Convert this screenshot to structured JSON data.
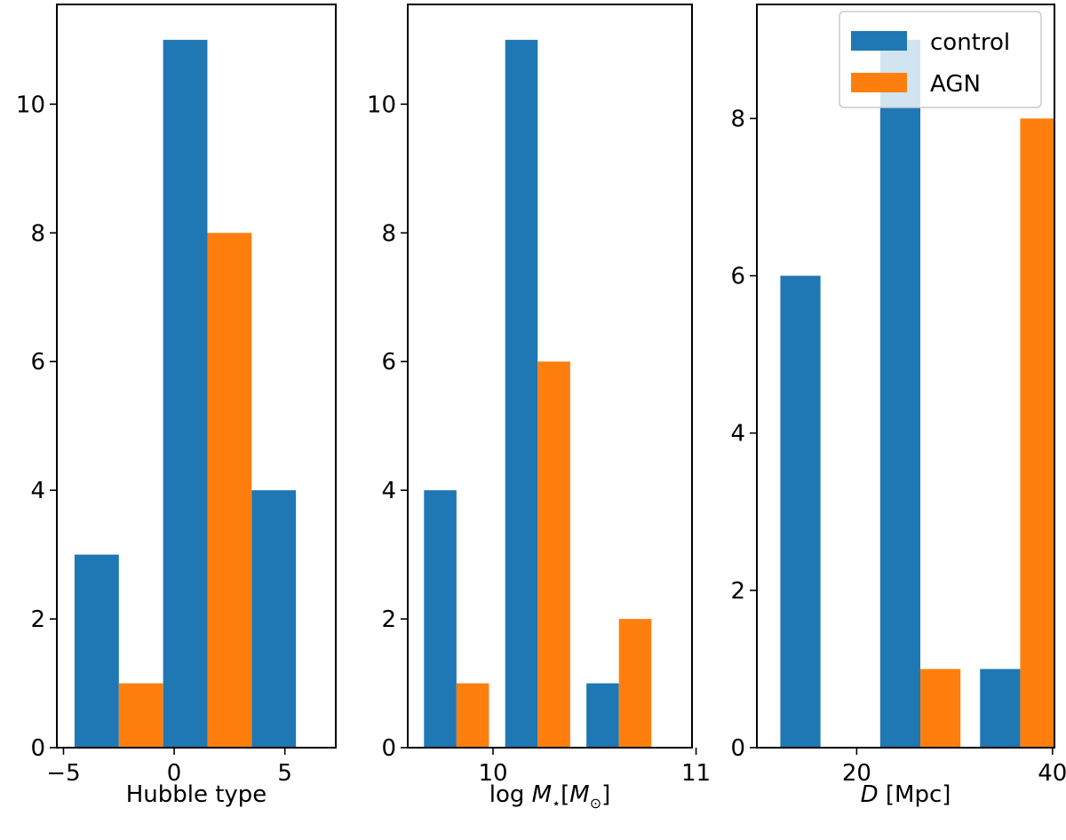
{
  "chart_data": [
    {
      "type": "bar",
      "xlabel": "Hubble type",
      "ylabel": "",
      "xlim": [
        -5.3,
        7.3
      ],
      "ylim": [
        0,
        11.55
      ],
      "xticks": [
        -5,
        0,
        5
      ],
      "xtick_labels": [
        "−5",
        "0",
        "5"
      ],
      "yticks": [
        0,
        2,
        4,
        6,
        8,
        10
      ],
      "ytick_labels": [
        "0",
        "2",
        "4",
        "6",
        "8",
        "10"
      ],
      "series": [
        {
          "name": "control",
          "color": "#1f77b4",
          "bars": [
            {
              "x0": -4.5,
              "x1": -2.5,
              "value": 3
            },
            {
              "x0": -0.5,
              "x1": 1.5,
              "value": 11
            },
            {
              "x0": 3.5,
              "x1": 5.5,
              "value": 4
            }
          ]
        },
        {
          "name": "AGN",
          "color": "#ff7f0e",
          "bars": [
            {
              "x0": -2.5,
              "x1": -0.5,
              "value": 1
            },
            {
              "x0": 1.5,
              "x1": 3.5,
              "value": 8
            },
            {
              "x0": 5.5,
              "x1": 7.5,
              "value": 0
            }
          ]
        }
      ]
    },
    {
      "type": "bar",
      "xlabel_prefix": "log ",
      "xlabel_var": "M",
      "xlabel_sub": "⋆",
      "xlabel_bracket_open": "[",
      "xlabel_unit": "M",
      "xlabel_unit_sub": "⊙",
      "xlabel_bracket_close": "]",
      "ylabel": "",
      "xlim": [
        9.58,
        10.98
      ],
      "ylim": [
        0,
        11.55
      ],
      "xticks": [
        10,
        11
      ],
      "xtick_labels": [
        "10",
        "11"
      ],
      "yticks": [
        0,
        2,
        4,
        6,
        8,
        10
      ],
      "ytick_labels": [
        "0",
        "2",
        "4",
        "6",
        "8",
        "10"
      ],
      "series": [
        {
          "name": "control",
          "color": "#1f77b4",
          "bars": [
            {
              "x0": 9.66,
              "x1": 9.82,
              "value": 4
            },
            {
              "x0": 10.06,
              "x1": 10.22,
              "value": 11
            },
            {
              "x0": 10.46,
              "x1": 10.62,
              "value": 1
            }
          ]
        },
        {
          "name": "AGN",
          "color": "#ff7f0e",
          "bars": [
            {
              "x0": 9.82,
              "x1": 9.98,
              "value": 1
            },
            {
              "x0": 10.22,
              "x1": 10.38,
              "value": 6
            },
            {
              "x0": 10.62,
              "x1": 10.78,
              "value": 2
            }
          ]
        }
      ]
    },
    {
      "type": "bar",
      "xlabel_var": "D",
      "xlabel_unit": " [Mpc]",
      "ylabel": "",
      "xlim": [
        9.8,
        40.2
      ],
      "ylim": [
        0,
        9.45
      ],
      "xticks": [
        20,
        40
      ],
      "xtick_labels": [
        "20",
        "40"
      ],
      "yticks": [
        0,
        2,
        4,
        6,
        8
      ],
      "ytick_labels": [
        "0",
        "2",
        "4",
        "6",
        "8"
      ],
      "legend": {
        "position": "top-right",
        "entries": [
          "control",
          "AGN"
        ]
      },
      "series": [
        {
          "name": "control",
          "color": "#1f77b4",
          "bars": [
            {
              "x0": 12.2,
              "x1": 16.3,
              "value": 6
            },
            {
              "x0": 22.4,
              "x1": 26.5,
              "value": 9
            },
            {
              "x0": 32.6,
              "x1": 36.7,
              "value": 1
            }
          ]
        },
        {
          "name": "AGN",
          "color": "#ff7f0e",
          "bars": [
            {
              "x0": 16.3,
              "x1": 20.4,
              "value": 0
            },
            {
              "x0": 26.5,
              "x1": 30.6,
              "value": 1
            },
            {
              "x0": 36.7,
              "x1": 40.8,
              "value": 8
            }
          ]
        }
      ]
    }
  ]
}
